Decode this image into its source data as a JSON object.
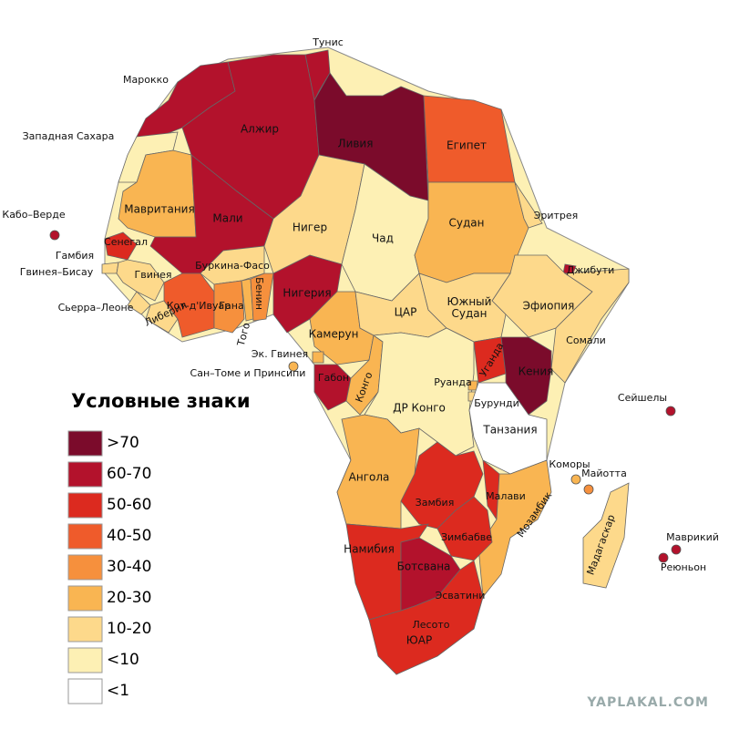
{
  "title_legend": "Условные знаки",
  "legend": [
    {
      "label": ">70",
      "color": "#7b0b2b"
    },
    {
      "label": "60-70",
      "color": "#b3122c"
    },
    {
      "label": "50-60",
      "color": "#dc2a1f"
    },
    {
      "label": "40-50",
      "color": "#ef5b2b"
    },
    {
      "label": "30-40",
      "color": "#f6903d"
    },
    {
      "label": "20-30",
      "color": "#f9b552"
    },
    {
      "label": "10-20",
      "color": "#fdd98b"
    },
    {
      "label": "<10",
      "color": "#fdf0b4"
    },
    {
      "label": "<1",
      "color": "#ffffff"
    }
  ],
  "countries": [
    {
      "label": "Тунис",
      "color": "#b3122c"
    },
    {
      "label": "Марокко",
      "color": "#b3122c"
    },
    {
      "label": "Западная Сахара",
      "color": "#fdf0b4"
    },
    {
      "label": "Алжир",
      "color": "#b3122c"
    },
    {
      "label": "Ливия",
      "color": "#7b0b2b"
    },
    {
      "label": "Египет",
      "color": "#ef5b2b"
    },
    {
      "label": "Мавритания",
      "color": "#f9b552"
    },
    {
      "label": "Мали",
      "color": "#b3122c"
    },
    {
      "label": "Нигер",
      "color": "#fdd98b"
    },
    {
      "label": "Чад",
      "color": "#fdf0b4"
    },
    {
      "label": "Судан",
      "color": "#f9b552"
    },
    {
      "label": "Эритрея",
      "color": "#fdd98b"
    },
    {
      "label": "Джибути",
      "color": "#b3122c"
    },
    {
      "label": "Эфиопия",
      "color": "#fdd98b"
    },
    {
      "label": "Сомали",
      "color": "#fdd98b"
    },
    {
      "label": "Сенегал",
      "color": "#dc2a1f"
    },
    {
      "label": "Гамбия",
      "color": "#fdd98b"
    },
    {
      "label": "Гвинея–Бисау",
      "color": "#fdd98b"
    },
    {
      "label": "Гвинея",
      "color": "#fdd98b"
    },
    {
      "label": "Сьерра–Леоне",
      "color": "#fdd98b"
    },
    {
      "label": "Либерия",
      "color": "#fdd98b"
    },
    {
      "label": "Кот-д'Ивуар",
      "color": "#ef5b2b"
    },
    {
      "label": "Буркина-Фасо",
      "color": "#fdd98b"
    },
    {
      "label": "Гана",
      "color": "#f6903d"
    },
    {
      "label": "Того",
      "color": "#f9b552"
    },
    {
      "label": "Бенин",
      "color": "#f6903d"
    },
    {
      "label": "Нигерия",
      "color": "#b3122c"
    },
    {
      "label": "Камерун",
      "color": "#f9b552"
    },
    {
      "label": "ЦАР",
      "color": "#fdd98b"
    },
    {
      "label": "Южный Судан",
      "color": "#fdd98b"
    },
    {
      "label": "Эк. Гвинея",
      "color": "#f9b552"
    },
    {
      "label": "Сан–Томе и Принсипи",
      "color": "#f9b552"
    },
    {
      "label": "Габон",
      "color": "#b3122c"
    },
    {
      "label": "Конго",
      "color": "#f9b552"
    },
    {
      "label": "ДР Конго",
      "color": "#fdf0b4"
    },
    {
      "label": "Уганда",
      "color": "#dc2a1f"
    },
    {
      "label": "Кения",
      "color": "#7b0b2b"
    },
    {
      "label": "Руанда",
      "color": "#f9b552"
    },
    {
      "label": "Бурунди",
      "color": "#fdd98b"
    },
    {
      "label": "Танзания",
      "color": "#ffffff"
    },
    {
      "label": "Ангола",
      "color": "#f9b552"
    },
    {
      "label": "Замбия",
      "color": "#dc2a1f"
    },
    {
      "label": "Малави",
      "color": "#dc2a1f"
    },
    {
      "label": "Мозамбик",
      "color": "#f9b552"
    },
    {
      "label": "Зимбабве",
      "color": "#dc2a1f"
    },
    {
      "label": "Намибия",
      "color": "#dc2a1f"
    },
    {
      "label": "Ботсвана",
      "color": "#b3122c"
    },
    {
      "label": "Эсватини",
      "color": "#b3122c"
    },
    {
      "label": "Лесото",
      "color": "#b3122c"
    },
    {
      "label": "ЮАР",
      "color": "#dc2a1f"
    },
    {
      "label": "Мадагаскар",
      "color": "#fdd98b"
    },
    {
      "label": "Коморы",
      "color": "#f9b552"
    },
    {
      "label": "Майотта",
      "color": "#f6903d"
    },
    {
      "label": "Сейшелы",
      "color": "#b3122c"
    },
    {
      "label": "Маврикий",
      "color": "#b3122c"
    },
    {
      "label": "Реюньон",
      "color": "#b3122c"
    },
    {
      "label": "Кабо–Верде",
      "color": "#b3122c"
    }
  ],
  "watermark": "YAPLAKAL.COM"
}
